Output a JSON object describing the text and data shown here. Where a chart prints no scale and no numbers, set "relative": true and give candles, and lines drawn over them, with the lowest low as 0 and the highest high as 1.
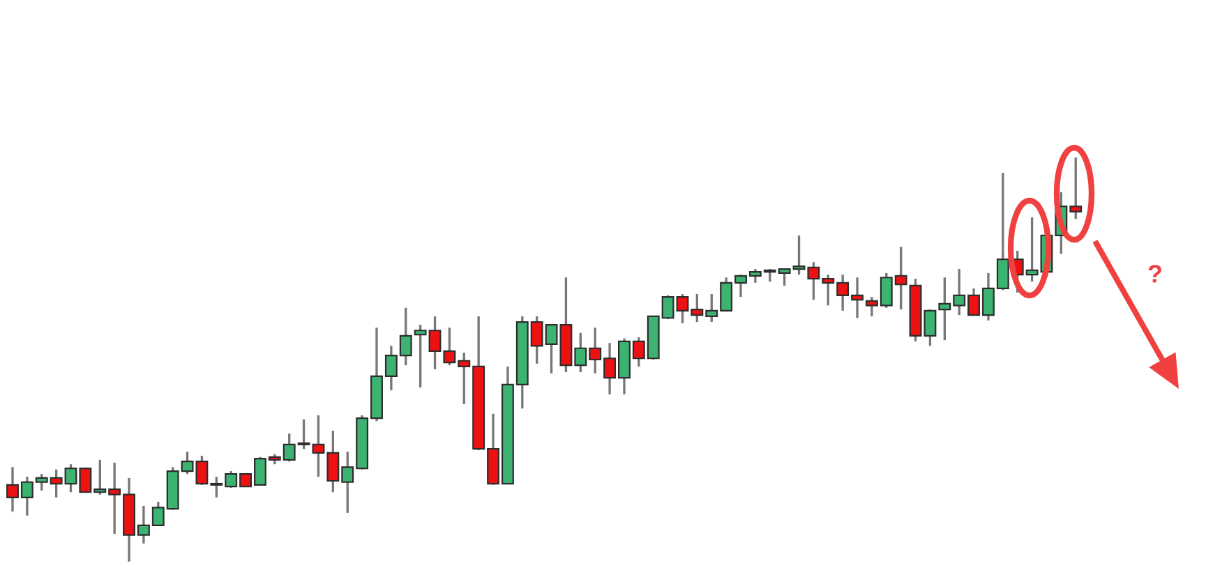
{
  "chart_data": {
    "type": "candlestick",
    "relative": true,
    "categories": [
      null,
      null,
      null,
      null,
      null,
      null,
      null,
      null,
      null,
      null,
      null,
      null,
      null,
      null,
      null,
      null,
      null,
      null,
      null,
      null,
      null,
      null,
      null,
      null,
      null,
      null,
      null,
      null,
      null,
      null,
      null,
      null,
      null,
      null,
      null,
      null,
      null,
      null,
      null,
      null,
      null,
      null,
      null,
      null,
      null,
      null,
      null,
      null,
      null,
      null,
      null,
      null,
      null,
      null,
      null,
      null,
      null,
      null,
      null,
      null,
      null,
      null,
      null,
      null,
      null,
      null,
      null,
      null,
      null,
      null,
      null,
      null,
      null,
      null
    ],
    "ohlc": [
      [
        0.19,
        0.234,
        0.124,
        0.159
      ],
      [
        0.159,
        0.21,
        0.114,
        0.197
      ],
      [
        0.197,
        0.217,
        0.176,
        0.207
      ],
      [
        0.207,
        0.228,
        0.159,
        0.193
      ],
      [
        0.193,
        0.241,
        0.172,
        0.231
      ],
      [
        0.231,
        0.231,
        0.172,
        0.172
      ],
      [
        0.172,
        0.252,
        0.166,
        0.179
      ],
      [
        0.179,
        0.245,
        0.069,
        0.166
      ],
      [
        0.166,
        0.207,
        0,
        0.066
      ],
      [
        0.066,
        0.138,
        0.045,
        0.09
      ],
      [
        0.09,
        0.148,
        0.09,
        0.134
      ],
      [
        0.131,
        0.234,
        0.128,
        0.224
      ],
      [
        0.224,
        0.272,
        0.217,
        0.248
      ],
      [
        0.248,
        0.262,
        0.19,
        0.193
      ],
      [
        0.19,
        0.21,
        0.159,
        0.193
      ],
      [
        0.186,
        0.224,
        0.183,
        0.217
      ],
      [
        0.217,
        0.217,
        0.186,
        0.186
      ],
      [
        0.19,
        0.259,
        0.19,
        0.255
      ],
      [
        0.259,
        0.266,
        0.241,
        0.252
      ],
      [
        0.252,
        0.317,
        0.248,
        0.29
      ],
      [
        0.293,
        0.352,
        0.279,
        0.29
      ],
      [
        0.29,
        0.362,
        0.21,
        0.269
      ],
      [
        0.269,
        0.324,
        0.172,
        0.2
      ],
      [
        0.197,
        0.272,
        0.121,
        0.234
      ],
      [
        0.231,
        0.362,
        0.228,
        0.355
      ],
      [
        0.355,
        0.579,
        0.348,
        0.459
      ],
      [
        0.459,
        0.534,
        0.424,
        0.51
      ],
      [
        0.51,
        0.628,
        0.486,
        0.559
      ],
      [
        0.562,
        0.586,
        0.431,
        0.572
      ],
      [
        0.572,
        0.607,
        0.476,
        0.521
      ],
      [
        0.521,
        0.579,
        0.486,
        0.493
      ],
      [
        0.497,
        0.517,
        0.39,
        0.483
      ],
      [
        0.483,
        0.607,
        0.276,
        0.279
      ],
      [
        0.279,
        0.366,
        0.19,
        0.193
      ],
      [
        0.193,
        0.483,
        0.193,
        0.438
      ],
      [
        0.438,
        0.607,
        0.379,
        0.593
      ],
      [
        0.593,
        0.607,
        0.49,
        0.534
      ],
      [
        0.538,
        0.586,
        0.466,
        0.586
      ],
      [
        0.586,
        0.703,
        0.469,
        0.486
      ],
      [
        0.486,
        0.566,
        0.469,
        0.528
      ],
      [
        0.528,
        0.579,
        0.466,
        0.5
      ],
      [
        0.503,
        0.541,
        0.414,
        0.455
      ],
      [
        0.455,
        0.552,
        0.414,
        0.545
      ],
      [
        0.545,
        0.555,
        0.483,
        0.503
      ],
      [
        0.503,
        0.607,
        0.5,
        0.607
      ],
      [
        0.603,
        0.659,
        0.6,
        0.655
      ],
      [
        0.655,
        0.662,
        0.59,
        0.621
      ],
      [
        0.624,
        0.662,
        0.593,
        0.61
      ],
      [
        0.607,
        0.662,
        0.593,
        0.621
      ],
      [
        0.621,
        0.703,
        0.621,
        0.69
      ],
      [
        0.69,
        0.71,
        0.655,
        0.707
      ],
      [
        0.707,
        0.724,
        0.69,
        0.717
      ],
      [
        0.717,
        0.724,
        0.693,
        0.721
      ],
      [
        0.714,
        0.724,
        0.683,
        0.724
      ],
      [
        0.724,
        0.807,
        0.71,
        0.731
      ],
      [
        0.728,
        0.741,
        0.648,
        0.7
      ],
      [
        0.7,
        0.71,
        0.634,
        0.69
      ],
      [
        0.69,
        0.71,
        0.621,
        0.659
      ],
      [
        0.659,
        0.703,
        0.603,
        0.648
      ],
      [
        0.645,
        0.655,
        0.607,
        0.634
      ],
      [
        0.634,
        0.714,
        0.628,
        0.703
      ],
      [
        0.707,
        0.779,
        0.624,
        0.686
      ],
      [
        0.683,
        0.7,
        0.545,
        0.559
      ],
      [
        0.559,
        0.624,
        0.534,
        0.621
      ],
      [
        0.624,
        0.703,
        0.548,
        0.638
      ],
      [
        0.634,
        0.724,
        0.61,
        0.659
      ],
      [
        0.659,
        0.676,
        0.61,
        0.61
      ],
      [
        0.61,
        0.714,
        0.597,
        0.676
      ],
      [
        0.676,
        0.962,
        0.672,
        0.748
      ],
      [
        0.748,
        0.769,
        0.666,
        0.71
      ],
      [
        0.71,
        0.852,
        0.693,
        0.721
      ],
      [
        0.717,
        0.81,
        0.717,
        0.807
      ],
      [
        0.807,
        0.914,
        0.762,
        0.879
      ],
      [
        0.879,
        1,
        0.848,
        0.866
      ]
    ],
    "colors": [
      "#ee1111",
      "#3cb371",
      "#3cb371",
      "#ee1111",
      "#3cb371",
      "#ee1111",
      "#3cb371",
      "#ee1111",
      "#ee1111",
      "#3cb371",
      "#3cb371",
      "#3cb371",
      "#3cb371",
      "#ee1111",
      "#3cb371",
      "#3cb371",
      "#ee1111",
      "#3cb371",
      "#ee1111",
      "#3cb371",
      "#ee1111",
      "#ee1111",
      "#ee1111",
      "#3cb371",
      "#3cb371",
      "#3cb371",
      "#3cb371",
      "#3cb371",
      "#3cb371",
      "#ee1111",
      "#ee1111",
      "#ee1111",
      "#ee1111",
      "#ee1111",
      "#3cb371",
      "#3cb371",
      "#ee1111",
      "#3cb371",
      "#ee1111",
      "#3cb371",
      "#ee1111",
      "#ee1111",
      "#3cb371",
      "#ee1111",
      "#3cb371",
      "#3cb371",
      "#ee1111",
      "#ee1111",
      "#3cb371",
      "#3cb371",
      "#3cb371",
      "#3cb371",
      "#3cb371",
      "#3cb371",
      "#3cb371",
      "#ee1111",
      "#ee1111",
      "#ee1111",
      "#ee1111",
      "#ee1111",
      "#3cb371",
      "#ee1111",
      "#ee1111",
      "#3cb371",
      "#3cb371",
      "#3cb371",
      "#ee1111",
      "#3cb371",
      "#3cb371",
      "#ee1111",
      "#3cb371",
      "#3cb371",
      "#3cb371",
      "#ee1111"
    ],
    "annotations": [
      "?"
    ]
  }
}
